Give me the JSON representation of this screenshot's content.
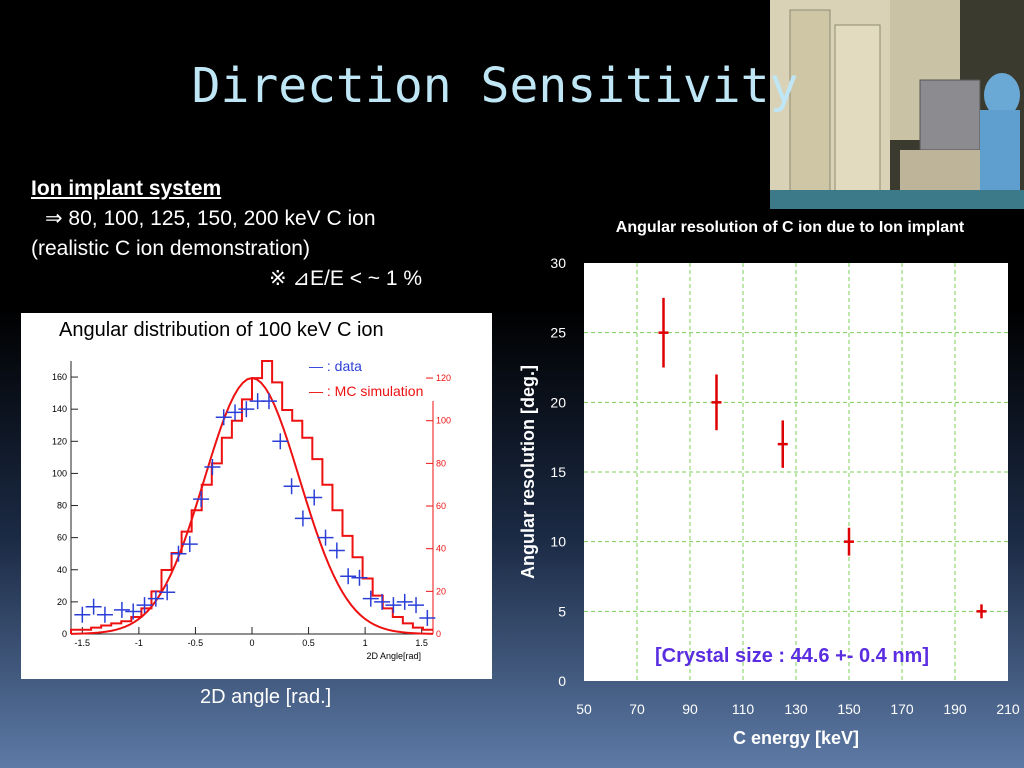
{
  "title": "Direction Sensitivity",
  "photo_icon": "lab-photo",
  "left_text": {
    "heading": "Ion implant system",
    "line2": "⇒ 80, 100, 125, 150, 200 keV C ion",
    "line3": "(realistic C ion demonstration)",
    "line4": "※ ⊿E/E < ~ 1 %"
  },
  "left_plot": {
    "caption": "Angular distribution of  100 keV C ion",
    "legend_data": "— : data",
    "legend_mc": "— : MC simulation",
    "xaxis_label": "2D Angle[rad]",
    "below_label": "2D angle [rad.]",
    "colors": {
      "data": "#2b3fd8",
      "mc": "#ee1111"
    }
  },
  "chart_data": {
    "type": "scatter",
    "title": "Angular resolution of C ion due to Ion implant",
    "xlabel": "C energy [keV]",
    "ylabel": "Angular resolution [deg.]",
    "xlim": [
      50,
      210
    ],
    "ylim": [
      0,
      30
    ],
    "xticks": [
      50,
      70,
      90,
      110,
      130,
      150,
      170,
      190,
      210
    ],
    "yticks": [
      0,
      5,
      10,
      15,
      20,
      25,
      30
    ],
    "grid": true,
    "color": "#dd0000",
    "points": [
      {
        "x": 80,
        "y": 25,
        "err": 2.5
      },
      {
        "x": 100,
        "y": 20,
        "err": 2.0
      },
      {
        "x": 125,
        "y": 17,
        "err": 1.7
      },
      {
        "x": 150,
        "y": 10,
        "err": 1.0
      },
      {
        "x": 200,
        "y": 5,
        "err": 0.5
      }
    ],
    "annotation": "[Crystal size : 44.6 +- 0.4 nm]"
  }
}
